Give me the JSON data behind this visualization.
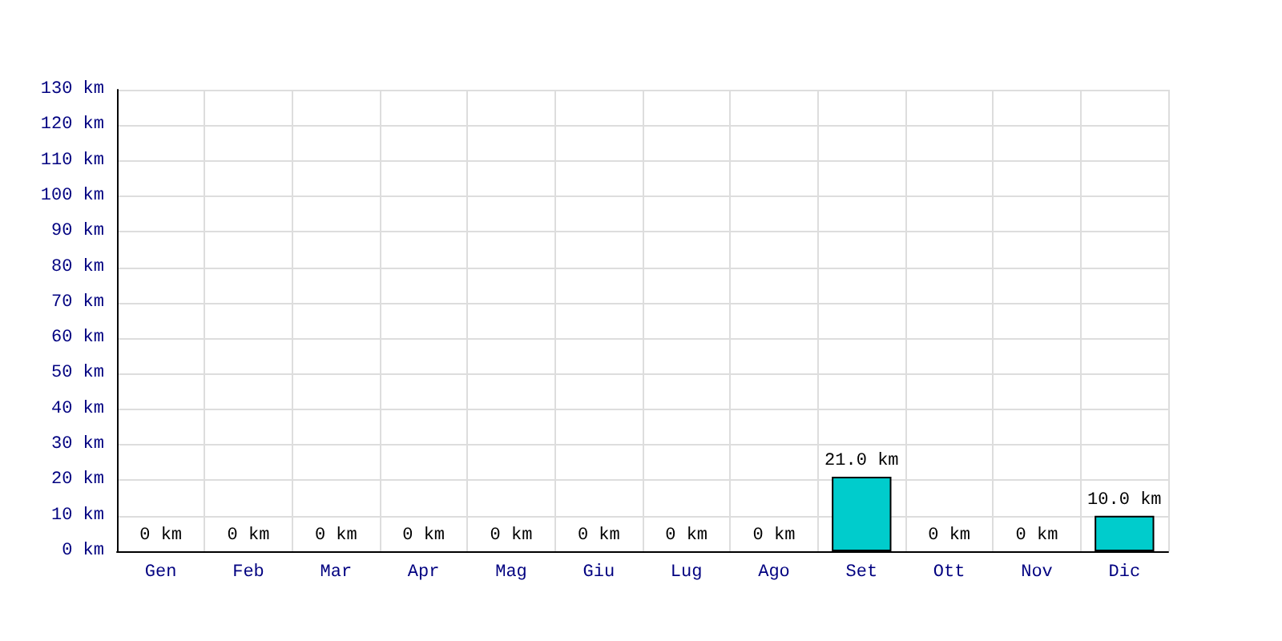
{
  "chart_data": {
    "type": "bar",
    "categories": [
      "Gen",
      "Feb",
      "Mar",
      "Apr",
      "Mag",
      "Giu",
      "Lug",
      "Ago",
      "Set",
      "Ott",
      "Nov",
      "Dic"
    ],
    "values": [
      0,
      0,
      0,
      0,
      0,
      0,
      0,
      0,
      21,
      0,
      0,
      10
    ],
    "value_labels": [
      "0 km",
      "0 km",
      "0 km",
      "0 km",
      "0 km",
      "0 km",
      "0 km",
      "0 km",
      "21.0 km",
      "0 km",
      "0 km",
      "10.0 km"
    ],
    "color": "#00cccc",
    "ylim": [
      0,
      130
    ],
    "yticks": [
      {
        "value": 0,
        "label": "0 km"
      },
      {
        "value": 10,
        "label": "10 km"
      },
      {
        "value": 20,
        "label": "20 km"
      },
      {
        "value": 30,
        "label": "30 km"
      },
      {
        "value": 40,
        "label": "40 km"
      },
      {
        "value": 50,
        "label": "50 km"
      },
      {
        "value": 60,
        "label": "60 km"
      },
      {
        "value": 70,
        "label": "70 km"
      },
      {
        "value": 80,
        "label": "80 km"
      },
      {
        "value": 90,
        "label": "90 km"
      },
      {
        "value": 100,
        "label": "100 km"
      },
      {
        "value": 110,
        "label": "110 km"
      },
      {
        "value": 120,
        "label": "120 km"
      },
      {
        "value": 130,
        "label": "130 km"
      }
    ],
    "grid": true
  }
}
